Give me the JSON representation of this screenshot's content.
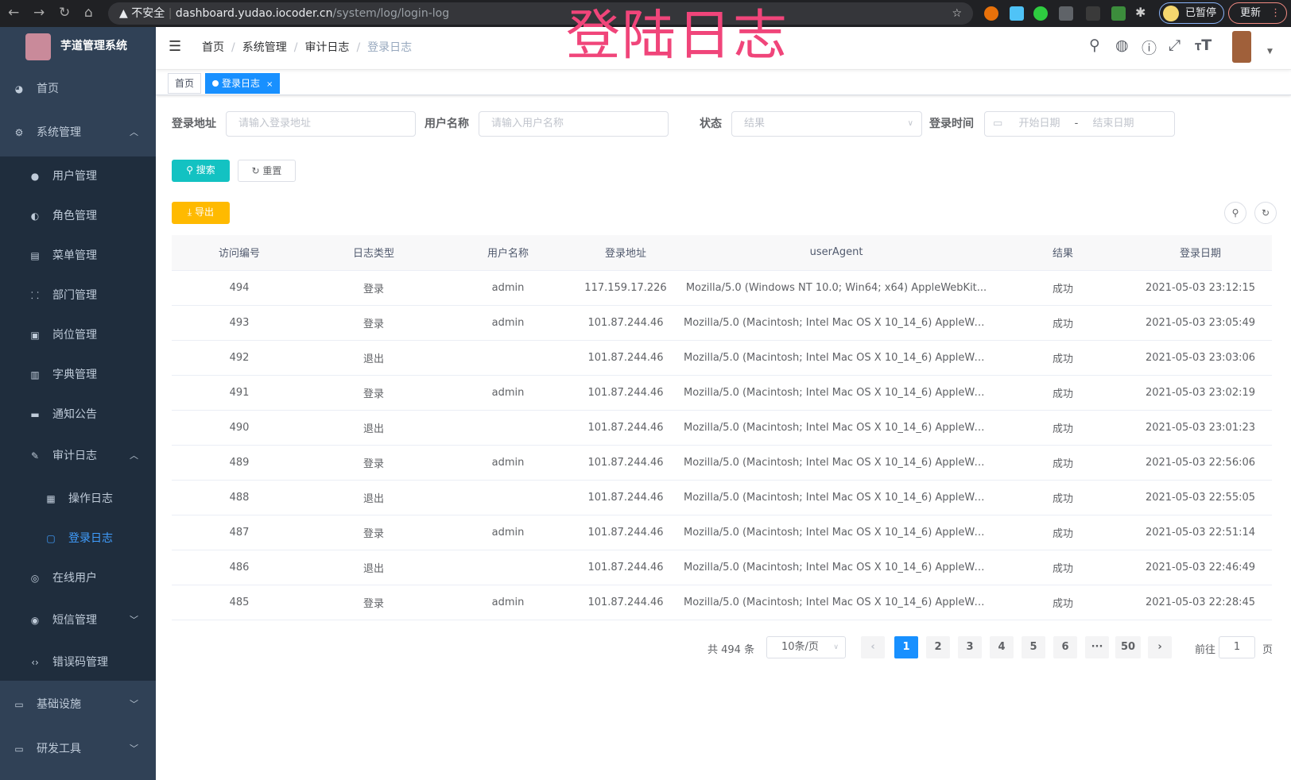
{
  "browser": {
    "insecure_label": "不安全",
    "url_host": "dashboard.yudao.iocoder.cn",
    "url_path": "/system/log/login-log",
    "paused_label": "已暂停",
    "update_label": "更新"
  },
  "overlay_title": "登陆日志",
  "sidebar": {
    "logo_title": "芋道管理系统",
    "items": [
      {
        "label": "首页",
        "icon": "dashboard-icon"
      },
      {
        "label": "系统管理",
        "icon": "gear-icon",
        "expanded": true
      },
      {
        "label": "用户管理",
        "icon": "user-icon"
      },
      {
        "label": "角色管理",
        "icon": "peoples-icon"
      },
      {
        "label": "菜单管理",
        "icon": "tree-table-icon"
      },
      {
        "label": "部门管理",
        "icon": "tree-icon"
      },
      {
        "label": "岗位管理",
        "icon": "post-icon"
      },
      {
        "label": "字典管理",
        "icon": "dict-icon"
      },
      {
        "label": "通知公告",
        "icon": "message-icon"
      },
      {
        "label": "审计日志",
        "icon": "log-icon",
        "expanded": true
      },
      {
        "label": "操作日志",
        "icon": "form-icon"
      },
      {
        "label": "登录日志",
        "icon": "logininfor-icon",
        "active": true
      },
      {
        "label": "在线用户",
        "icon": "online-icon"
      },
      {
        "label": "短信管理",
        "icon": "validcode-icon"
      },
      {
        "label": "错误码管理",
        "icon": "code-icon"
      },
      {
        "label": "基础设施",
        "icon": "monitor-icon"
      },
      {
        "label": "研发工具",
        "icon": "tool-icon"
      }
    ]
  },
  "breadcrumb": [
    "首页",
    "系统管理",
    "审计日志",
    "登录日志"
  ],
  "tags": [
    {
      "label": "首页"
    },
    {
      "label": "登录日志",
      "active": true
    }
  ],
  "filters": {
    "address": {
      "label": "登录地址",
      "placeholder": "请输入登录地址"
    },
    "username": {
      "label": "用户名称",
      "placeholder": "请输入用户名称"
    },
    "status": {
      "label": "状态",
      "placeholder": "结果"
    },
    "time": {
      "label": "登录时间",
      "start_placeholder": "开始日期",
      "separator": "-",
      "end_placeholder": "结束日期"
    }
  },
  "buttons": {
    "search": "搜索",
    "reset": "重置",
    "export": "导出"
  },
  "table": {
    "columns": [
      "访问编号",
      "日志类型",
      "用户名称",
      "登录地址",
      "userAgent",
      "结果",
      "登录日期"
    ],
    "rows": [
      [
        "494",
        "登录",
        "admin",
        "117.159.17.226",
        "Mozilla/5.0 (Windows NT 10.0; Win64; x64) AppleWebKit...",
        "成功",
        "2021-05-03 23:12:15"
      ],
      [
        "493",
        "登录",
        "admin",
        "101.87.244.46",
        "Mozilla/5.0 (Macintosh; Intel Mac OS X 10_14_6) AppleWe...",
        "成功",
        "2021-05-03 23:05:49"
      ],
      [
        "492",
        "退出",
        "",
        "101.87.244.46",
        "Mozilla/5.0 (Macintosh; Intel Mac OS X 10_14_6) AppleWe...",
        "成功",
        "2021-05-03 23:03:06"
      ],
      [
        "491",
        "登录",
        "admin",
        "101.87.244.46",
        "Mozilla/5.0 (Macintosh; Intel Mac OS X 10_14_6) AppleWe...",
        "成功",
        "2021-05-03 23:02:19"
      ],
      [
        "490",
        "退出",
        "",
        "101.87.244.46",
        "Mozilla/5.0 (Macintosh; Intel Mac OS X 10_14_6) AppleWe...",
        "成功",
        "2021-05-03 23:01:23"
      ],
      [
        "489",
        "登录",
        "admin",
        "101.87.244.46",
        "Mozilla/5.0 (Macintosh; Intel Mac OS X 10_14_6) AppleWe...",
        "成功",
        "2021-05-03 22:56:06"
      ],
      [
        "488",
        "退出",
        "",
        "101.87.244.46",
        "Mozilla/5.0 (Macintosh; Intel Mac OS X 10_14_6) AppleWe...",
        "成功",
        "2021-05-03 22:55:05"
      ],
      [
        "487",
        "登录",
        "admin",
        "101.87.244.46",
        "Mozilla/5.0 (Macintosh; Intel Mac OS X 10_14_6) AppleWe...",
        "成功",
        "2021-05-03 22:51:14"
      ],
      [
        "486",
        "退出",
        "",
        "101.87.244.46",
        "Mozilla/5.0 (Macintosh; Intel Mac OS X 10_14_6) AppleWe...",
        "成功",
        "2021-05-03 22:46:49"
      ],
      [
        "485",
        "登录",
        "admin",
        "101.87.244.46",
        "Mozilla/5.0 (Macintosh; Intel Mac OS X 10_14_6) AppleWe...",
        "成功",
        "2021-05-03 22:28:45"
      ]
    ]
  },
  "pagination": {
    "total_label": "共 494 条",
    "page_size": "10条/页",
    "pages": [
      "1",
      "2",
      "3",
      "4",
      "5",
      "6",
      "···",
      "50"
    ],
    "current": "1",
    "goto_label": "前往",
    "goto_value": "1",
    "goto_suffix": "页"
  },
  "colors": {
    "sidebar_bg": "#304156",
    "accent": "#1890ff",
    "search_btn": "#13c2c2",
    "export_btn": "#ffba00",
    "overlay_title": "#f0457a"
  }
}
